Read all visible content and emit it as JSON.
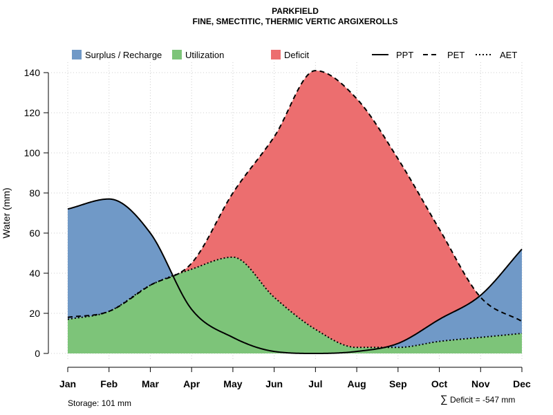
{
  "chart_data": {
    "type": "area",
    "title": "PARKFIELD",
    "subtitle": "FINE, SMECTITIC, THERMIC VERTIC ARGIXEROLLS",
    "xlabel": "",
    "ylabel": "Water (mm)",
    "ylim": [
      0,
      140
    ],
    "yticks": [
      0,
      20,
      40,
      60,
      80,
      100,
      120,
      140
    ],
    "categories": [
      "Jan",
      "Feb",
      "Mar",
      "Apr",
      "May",
      "Jun",
      "Jul",
      "Aug",
      "Sep",
      "Oct",
      "Nov",
      "Dec"
    ],
    "series": [
      {
        "name": "PPT",
        "style": "solid",
        "values": [
          72,
          77,
          60,
          22,
          8,
          1,
          0,
          1,
          5,
          17,
          29,
          52
        ]
      },
      {
        "name": "PET",
        "style": "dashed",
        "values": [
          18,
          21,
          34,
          45,
          80,
          108,
          141,
          127,
          97,
          62,
          28,
          16
        ]
      },
      {
        "name": "AET",
        "style": "dotted",
        "values": [
          17,
          21,
          34,
          42,
          48,
          28,
          12,
          3,
          3,
          6,
          8,
          10
        ]
      }
    ],
    "legend": [
      {
        "label": "Surplus / Recharge",
        "color": "#7099c7"
      },
      {
        "label": "Utilization",
        "color": "#7dc479"
      },
      {
        "label": "Deficit",
        "color": "#ec6e6f"
      }
    ],
    "line_legend": [
      "PPT",
      "PET",
      "AET"
    ],
    "grid": true,
    "legend_position": "top"
  },
  "annotations": {
    "storage": "Storage: 101 mm",
    "deficit_symbol": "∑",
    "deficit": "Deficit = -547 mm"
  },
  "colors": {
    "surplus": "#7099c7",
    "utilization": "#7dc479",
    "deficit": "#ec6e6f"
  }
}
